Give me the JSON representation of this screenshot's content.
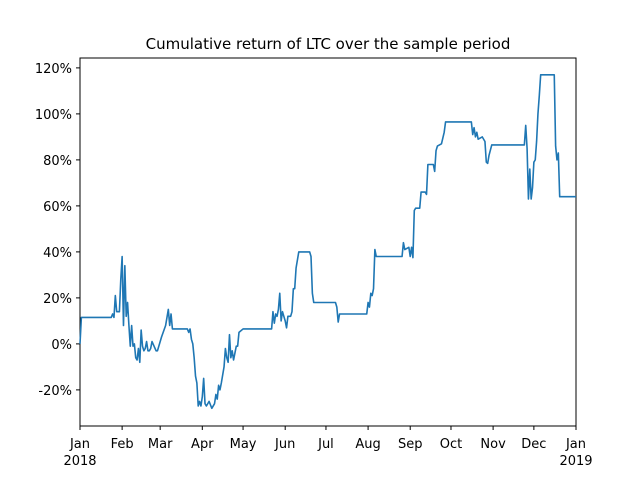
{
  "chart_data": {
    "type": "line",
    "title": "Cumulative return of LTC over the sample period",
    "x": [
      0,
      1,
      23,
      24,
      25,
      26,
      27,
      29,
      30,
      31,
      32,
      33,
      34,
      35,
      36,
      37,
      38,
      39,
      40,
      41,
      42,
      43,
      44,
      45,
      46,
      47,
      48,
      49,
      50,
      51,
      52,
      53,
      56,
      57,
      60,
      63,
      65,
      66,
      67,
      68,
      79,
      80,
      81,
      82,
      83,
      84,
      85,
      86,
      87,
      88,
      89,
      90,
      91,
      92,
      93,
      95,
      97,
      99,
      100,
      101,
      102,
      103,
      104,
      106,
      107,
      108,
      109,
      110,
      111,
      112,
      113,
      114,
      115,
      116,
      117,
      120,
      141,
      142,
      143,
      144,
      145,
      146,
      147,
      148,
      149,
      150,
      151,
      152,
      153,
      155,
      156,
      157,
      158,
      159,
      161,
      169,
      170,
      171,
      172,
      188,
      189,
      190,
      191,
      211,
      212,
      213,
      214,
      215,
      216,
      217,
      218,
      237,
      238,
      239,
      242,
      243,
      244,
      245,
      246,
      247,
      250,
      251,
      254,
      255,
      256,
      260,
      261,
      262,
      263,
      266,
      268,
      269,
      288,
      289,
      290,
      291,
      292,
      293,
      296,
      298,
      299,
      300,
      301,
      303,
      327,
      328,
      329,
      330,
      331,
      332,
      333,
      334,
      335,
      336,
      337,
      338,
      339,
      349,
      350,
      351,
      352,
      353,
      365
    ],
    "values": [
      0,
      11.5,
      11.5,
      13,
      11.5,
      21,
      14,
      14,
      28,
      38,
      8,
      34,
      12,
      18,
      8,
      -1,
      8,
      -1,
      0,
      -6,
      -7,
      -2,
      -8,
      6,
      -1,
      -3,
      -2,
      1,
      -3,
      -3,
      -2,
      1,
      -3,
      -3,
      3,
      8,
      15,
      8,
      13,
      6.5,
      6.5,
      5,
      6.5,
      2,
      0,
      -6,
      -14,
      -17,
      -27,
      -25,
      -27,
      -23,
      -15,
      -26,
      -27,
      -25,
      -28,
      -26,
      -22,
      -24,
      -18,
      -20,
      -17,
      -10,
      -2,
      -6,
      -8,
      4,
      -6,
      -3,
      -7,
      -4,
      -1,
      -1,
      5,
      6.5,
      6.5,
      14,
      9,
      13,
      12,
      15,
      22,
      10,
      14,
      12,
      10,
      7,
      12,
      12,
      14,
      24,
      24,
      33,
      40,
      40,
      38,
      22,
      18,
      18,
      16,
      9.5,
      13,
      13,
      18,
      16,
      22,
      21,
      24,
      41,
      38,
      38,
      44,
      41,
      42,
      38,
      42,
      37.5,
      58,
      59,
      59,
      66,
      66,
      65,
      78,
      78,
      75,
      84,
      86,
      87,
      92,
      96.5,
      96.5,
      91,
      94,
      90,
      92,
      89,
      90,
      88,
      79,
      78.5,
      82,
      86.5,
      86.5,
      95,
      85,
      63,
      76,
      63,
      68,
      79,
      80,
      88,
      100,
      108,
      117,
      117,
      86,
      80,
      83,
      64,
      64
    ],
    "color": "#1f77b4",
    "xlim": [
      0,
      365
    ],
    "xticks": [
      {
        "value": 0,
        "label": "Jan"
      },
      {
        "value": 31,
        "label": "Feb"
      },
      {
        "value": 59,
        "label": "Mar"
      },
      {
        "value": 90,
        "label": "Apr"
      },
      {
        "value": 120,
        "label": "May"
      },
      {
        "value": 151,
        "label": "Jun"
      },
      {
        "value": 181,
        "label": "Jul"
      },
      {
        "value": 212,
        "label": "Aug"
      },
      {
        "value": 243,
        "label": "Sep"
      },
      {
        "value": 273,
        "label": "Oct"
      },
      {
        "value": 304,
        "label": "Nov"
      },
      {
        "value": 334,
        "label": "Dec"
      },
      {
        "value": 365,
        "label": "Jan"
      }
    ],
    "x_year_labels": [
      {
        "value": 0,
        "label": "2018"
      },
      {
        "value": 365,
        "label": "2019"
      }
    ],
    "ylim": [
      -35.7,
      124.3
    ],
    "yticks": [
      {
        "value": -20,
        "label": "-20%"
      },
      {
        "value": 0,
        "label": "0%"
      },
      {
        "value": 20,
        "label": "20%"
      },
      {
        "value": 40,
        "label": "40%"
      },
      {
        "value": 60,
        "label": "60%"
      },
      {
        "value": 80,
        "label": "80%"
      },
      {
        "value": 100,
        "label": "100%"
      },
      {
        "value": 120,
        "label": "120%"
      }
    ]
  }
}
